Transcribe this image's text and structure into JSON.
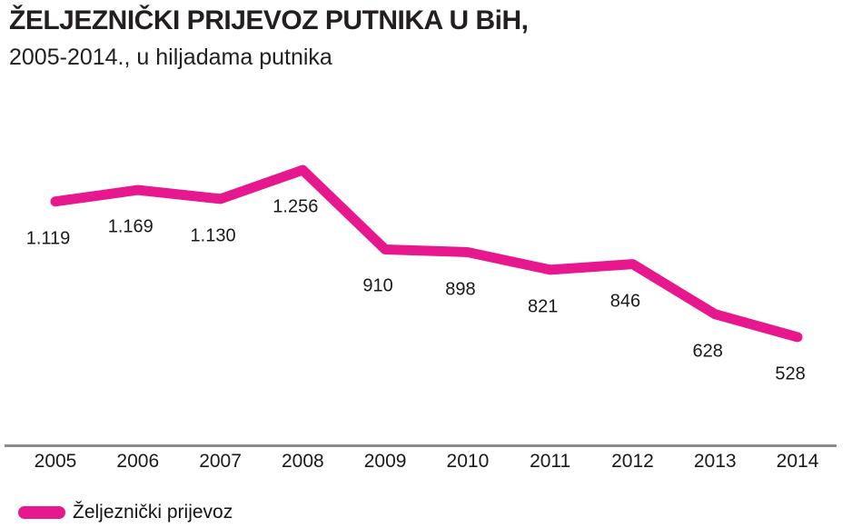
{
  "header": {
    "title": "ŽELJEZNIČKI PRIJEVOZ PUTNIKA U BiH,",
    "subtitle": "2005-2014., u hiljadama putnika"
  },
  "legend": {
    "label": "Željeznički prijevoz",
    "swatch_color": "#e7178d"
  },
  "colors": {
    "line": "#e7178d",
    "axis": "#8a8c8f",
    "text": "#231f20"
  },
  "chart_data": {
    "type": "line",
    "title": "ŽELJEZNIČKI PRIJEVOZ PUTNIKA U BiH, 2005-2014., u hiljadama putnika",
    "categories": [
      "2005",
      "2006",
      "2007",
      "2008",
      "2009",
      "2010",
      "2011",
      "2012",
      "2013",
      "2014"
    ],
    "series": [
      {
        "name": "Željeznički prijevoz",
        "values": [
          1119,
          1169,
          1130,
          1256,
          910,
          898,
          821,
          846,
          628,
          528
        ],
        "labels": [
          "1.119",
          "1.169",
          "1.130",
          "1.256",
          "910",
          "898",
          "821",
          "846",
          "628",
          "528"
        ],
        "color": "#e7178d"
      }
    ],
    "xlabel": "",
    "ylabel": "",
    "ylim": [
      500,
      1300
    ],
    "grid": false,
    "legend_position": "bottom-left",
    "data_label_position": "below points",
    "y_axis_shown": false,
    "x_axis_shown": true
  }
}
